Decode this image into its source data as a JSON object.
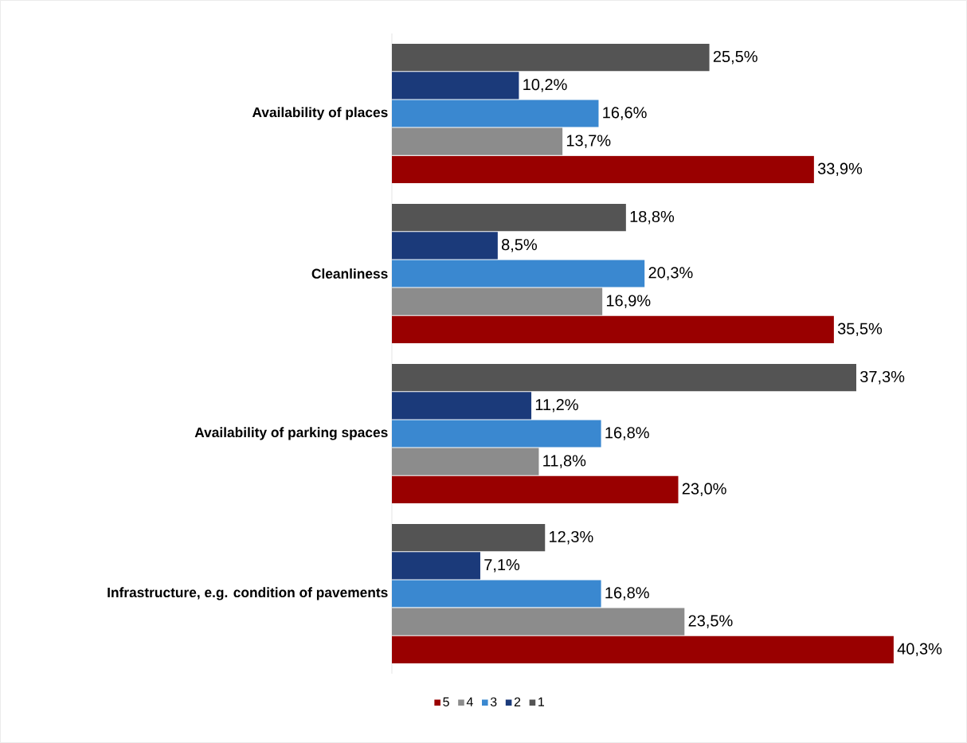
{
  "chart_data": {
    "type": "bar",
    "orientation": "horizontal",
    "legend": "bottom",
    "categories": [
      "Availability of places",
      "Cleanliness",
      "Availability of parking spaces",
      "Infrastructure, e.g. condition of pavements"
    ],
    "series": [
      {
        "name": "5",
        "color": "#990000",
        "values": [
          33.9,
          35.5,
          23.0,
          40.3
        ],
        "value_labels": [
          "33,9%",
          "35,5%",
          "23,0%",
          "40,3%"
        ]
      },
      {
        "name": "4",
        "color": "#8c8c8c",
        "values": [
          13.7,
          16.9,
          11.8,
          23.5
        ],
        "value_labels": [
          "13,7%",
          "16,9%",
          "11,8%",
          "23,5%"
        ]
      },
      {
        "name": "3",
        "color": "#3a88d0",
        "values": [
          16.6,
          20.3,
          16.8,
          16.8
        ],
        "value_labels": [
          "16,6%",
          "20,3%",
          "16,8%",
          "16,8%"
        ]
      },
      {
        "name": "2",
        "color": "#1b3a7a",
        "values": [
          10.2,
          8.5,
          11.2,
          7.1
        ],
        "value_labels": [
          "10,2%",
          "8,5%",
          "11,2%",
          "7,1%"
        ]
      },
      {
        "name": "1",
        "color": "#545454",
        "values": [
          25.5,
          18.8,
          37.3,
          12.3
        ],
        "value_labels": [
          "25,5%",
          "18,8%",
          "37,3%",
          "12,3%"
        ]
      }
    ]
  }
}
